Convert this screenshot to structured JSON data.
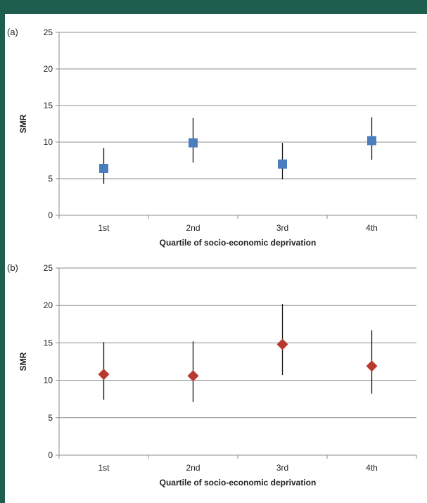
{
  "chart_data": [
    {
      "panel_label": "(a)",
      "type": "scatter",
      "marker": "square",
      "color": "#4a7ebf",
      "categories": [
        "1st",
        "2nd",
        "3rd",
        "4th"
      ],
      "values": [
        6.4,
        9.9,
        7.0,
        10.2
      ],
      "ci_lower": [
        4.3,
        7.2,
        4.9,
        7.6
      ],
      "ci_upper": [
        9.2,
        13.3,
        9.9,
        13.4
      ],
      "yticks": [
        0,
        5,
        10,
        15,
        20,
        25
      ],
      "ylim": [
        0,
        25
      ],
      "ylabel": "SMR",
      "xlabel": "Quartile of socio-economic deprivation",
      "grid": true
    },
    {
      "panel_label": "(b)",
      "type": "scatter",
      "marker": "diamond",
      "color": "#b83a2e",
      "categories": [
        "1st",
        "2nd",
        "3rd",
        "4th"
      ],
      "values": [
        10.8,
        10.6,
        14.8,
        11.9
      ],
      "ci_lower": [
        7.4,
        7.1,
        10.7,
        8.2
      ],
      "ci_upper": [
        15.1,
        15.2,
        20.2,
        16.7
      ],
      "yticks": [
        0,
        5,
        10,
        15,
        20,
        25
      ],
      "ylim": [
        0,
        25
      ],
      "ylabel": "SMR",
      "xlabel": "Quartile of socio-economic deprivation",
      "grid": true
    }
  ]
}
